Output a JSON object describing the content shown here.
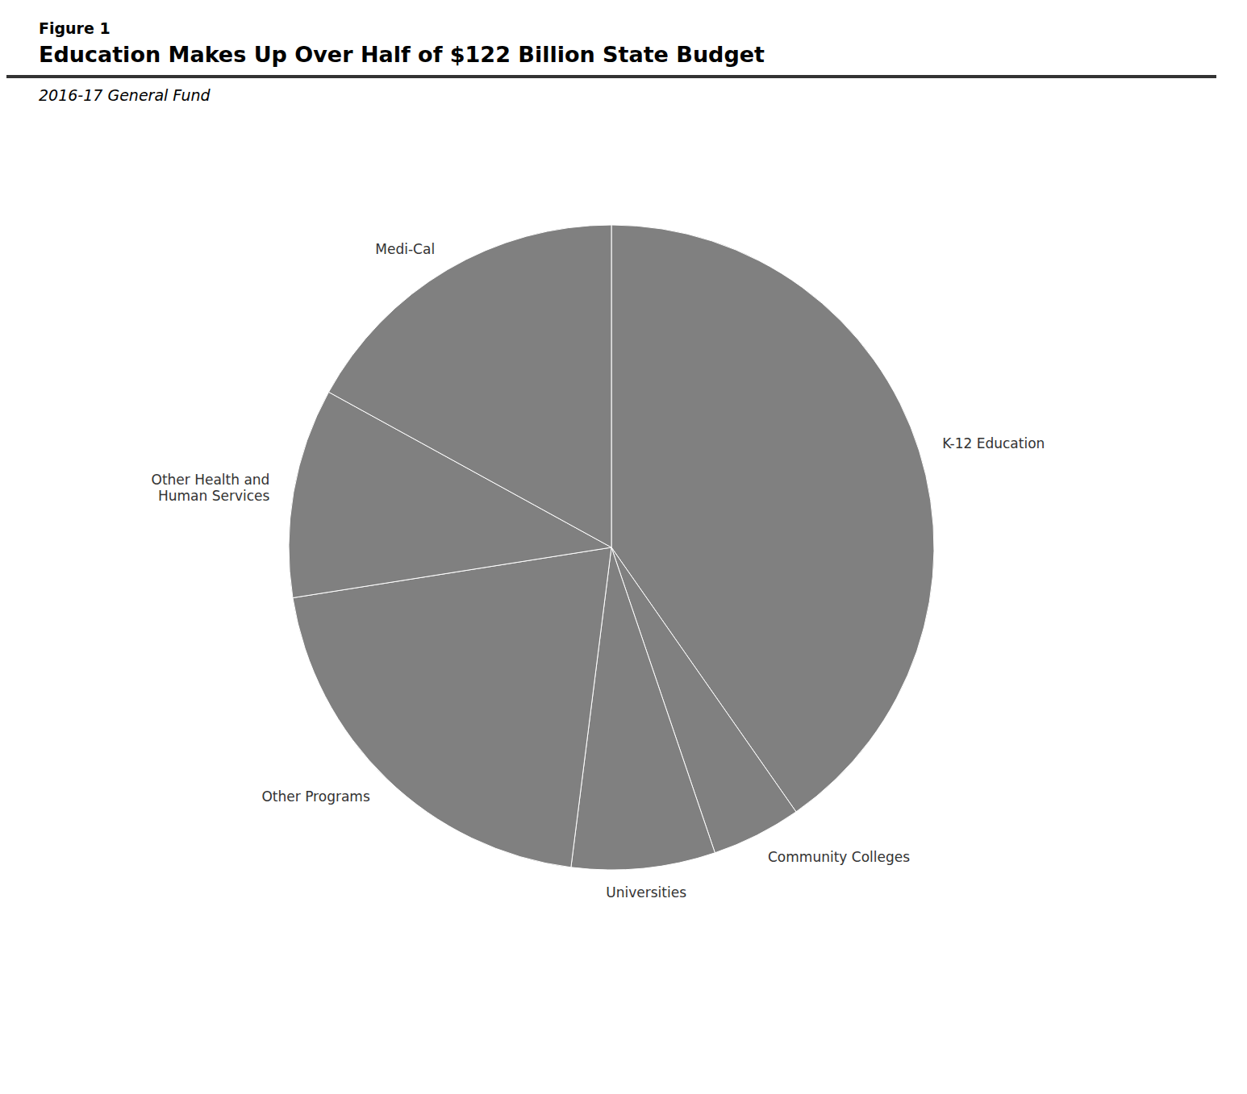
{
  "chart_data": {
    "type": "pie",
    "title": "Education Makes Up Over Half of $122 Billion State Budget",
    "subtitle": "2016-17 General Fund",
    "annotations": [
      "Figure 1"
    ],
    "categories": [
      "K-12 Education",
      "Community Colleges",
      "Universities",
      "Other Programs",
      "Other Health and\nHuman Services",
      "Medi-Cal"
    ],
    "values": [
      40.3,
      4.5,
      7.2,
      20.5,
      10.5,
      17.0
    ]
  }
}
